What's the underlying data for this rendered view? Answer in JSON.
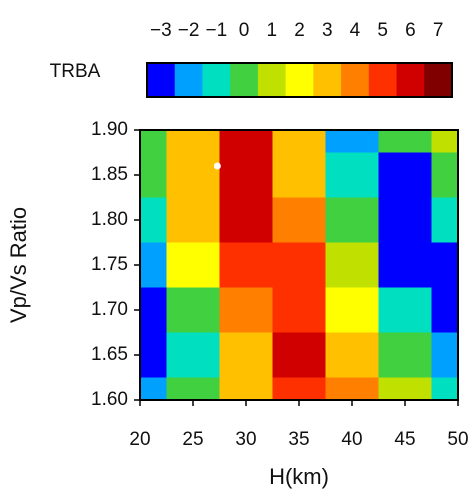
{
  "chart_data": {
    "type": "heatmap",
    "colorbar_label": "TRBA",
    "colorbar_lim": [
      -3.5,
      7.5
    ],
    "colorbar_ticks": [
      {
        "value": -3,
        "label": "−3"
      },
      {
        "value": -2,
        "label": "−2"
      },
      {
        "value": -1,
        "label": "−1"
      },
      0,
      1,
      2,
      3,
      4,
      5,
      6,
      7
    ],
    "colormap": [
      "#0000ff",
      "#00a0ff",
      "#00e0c0",
      "#40d040",
      "#c0e000",
      "#ffff00",
      "#ffc000",
      "#ff8000",
      "#ff3000",
      "#d00000",
      "#800000"
    ],
    "x_label": "H(km)",
    "y_label": "Vp/Vs Ratio",
    "x": [
      20,
      25,
      30,
      35,
      40,
      45,
      50
    ],
    "y": [
      1.9,
      1.85,
      1.8,
      1.75,
      1.7,
      1.65,
      1.6
    ],
    "z": [
      [
        0,
        3,
        6,
        3,
        -2,
        0,
        1
      ],
      [
        0,
        3,
        6,
        3,
        -1,
        -3,
        0
      ],
      [
        -1,
        3,
        6,
        4,
        0,
        -4,
        -1
      ],
      [
        -2,
        2,
        5,
        5,
        1,
        -3,
        -3
      ],
      [
        -3,
        0,
        4,
        5,
        2,
        -1,
        -4
      ],
      [
        -4,
        -1,
        3,
        6,
        3,
        0,
        -2
      ],
      [
        -2,
        0,
        3,
        5,
        4,
        1,
        -1
      ]
    ],
    "max_point": {
      "x": 27.3,
      "y": 1.86
    },
    "xlim": [
      20,
      50
    ],
    "xticks": [
      20,
      25,
      30,
      35,
      40,
      45,
      50
    ],
    "ylim": [
      1.6,
      1.9
    ],
    "yticks": [
      {
        "value": 1.6,
        "label": "1.60"
      },
      {
        "value": 1.65,
        "label": "1.65"
      },
      {
        "value": 1.7,
        "label": "1.70"
      },
      {
        "value": 1.75,
        "label": "1.75"
      },
      {
        "value": 1.8,
        "label": "1.80"
      },
      {
        "value": 1.85,
        "label": "1.85"
      },
      {
        "value": 1.9,
        "label": "1.90"
      }
    ]
  }
}
